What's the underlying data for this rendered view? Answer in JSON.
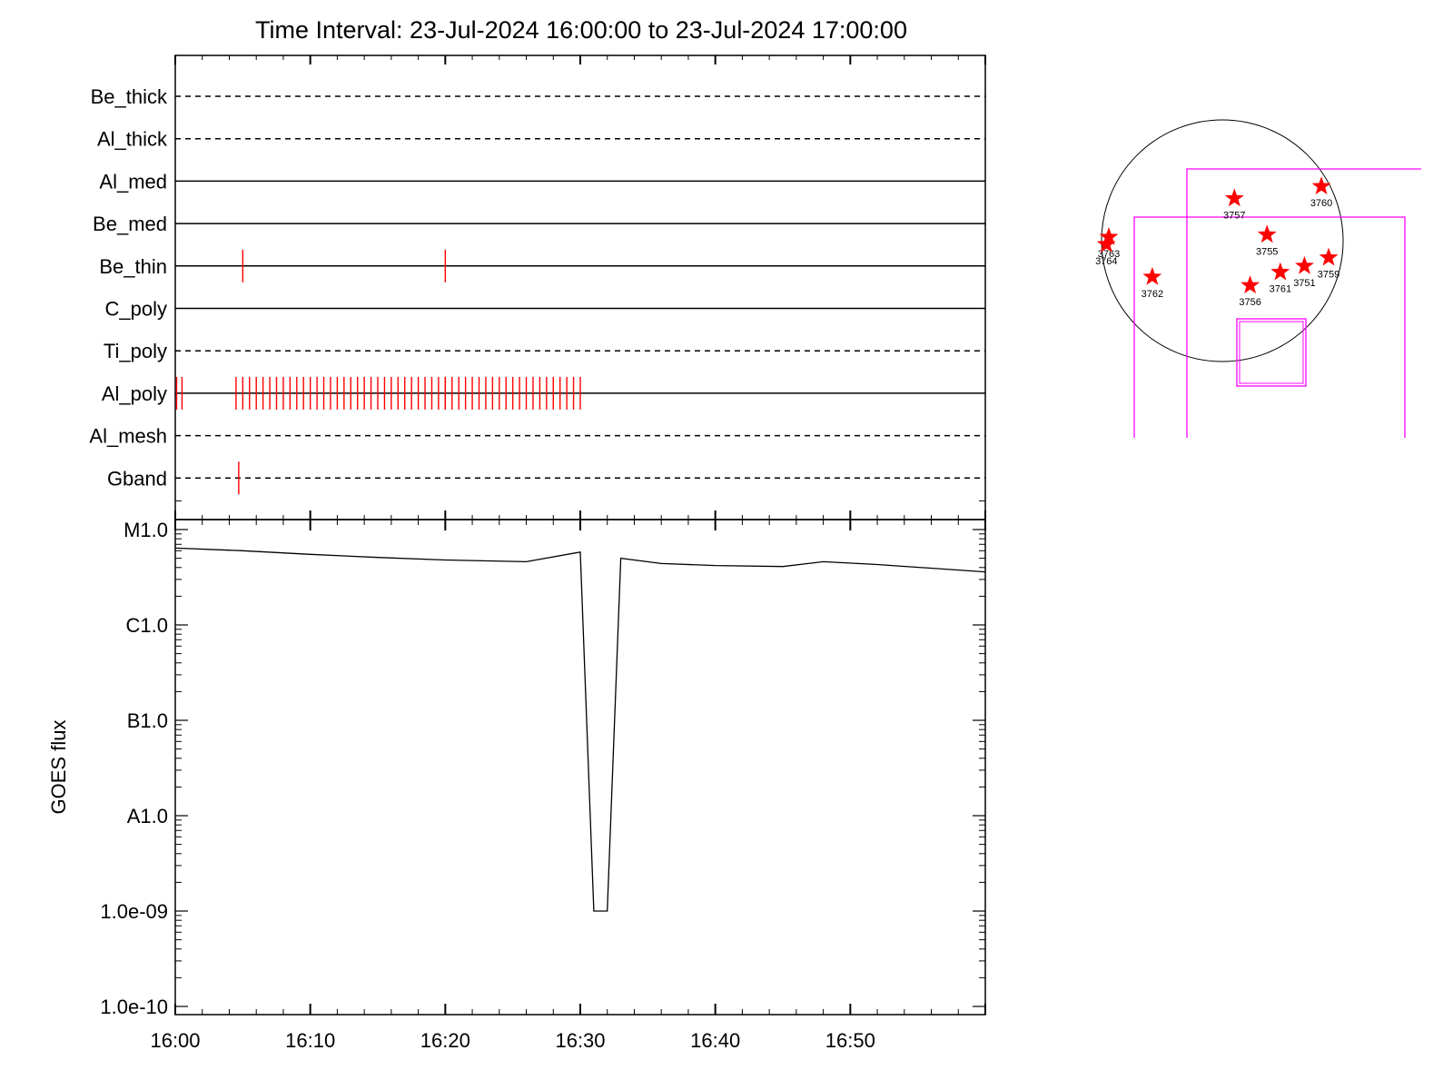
{
  "title": "Time Interval: 23-Jul-2024 16:00:00 to 23-Jul-2024 17:00:00",
  "colors": {
    "axis": "#000000",
    "event": "#ff0000",
    "box": "#ff00ff",
    "disk": "#000000"
  },
  "chart_data": [
    {
      "type": "event-timeline",
      "x_range": [
        "16:00",
        "17:00"
      ],
      "rows": [
        {
          "label": "Be_thick",
          "style": "dashed",
          "events": []
        },
        {
          "label": "Al_thick",
          "style": "dashed",
          "events": []
        },
        {
          "label": "Al_med",
          "style": "solid",
          "events": []
        },
        {
          "label": "Be_med",
          "style": "solid",
          "events": []
        },
        {
          "label": "Be_thin",
          "style": "solid",
          "events": [
            "16:05",
            "16:20"
          ]
        },
        {
          "label": "C_poly",
          "style": "solid",
          "events": []
        },
        {
          "label": "Ti_poly",
          "style": "dashed",
          "events": []
        },
        {
          "label": "Al_poly",
          "style": "solid",
          "events_range": {
            "start": "16:04.5",
            "end": "16:30",
            "step_minutes": 0.5
          },
          "events": [
            "16:00.1",
            "16:00.5",
            "16:20"
          ]
        },
        {
          "label": "Al_mesh",
          "style": "dashed",
          "events": []
        },
        {
          "label": "Gband",
          "style": "dashed",
          "events": [
            "16:04.7"
          ]
        }
      ]
    },
    {
      "type": "line",
      "ylabel": "GOES flux",
      "yscale": "log",
      "ylim": [
        1e-10,
        2e-05
      ],
      "yticks": [
        {
          "value": 1e-05,
          "label": "M1.0"
        },
        {
          "value": 1e-06,
          "label": "C1.0"
        },
        {
          "value": 1e-07,
          "label": "B1.0"
        },
        {
          "value": 1e-08,
          "label": "A1.0"
        },
        {
          "value": 1e-09,
          "label": "1.0e-09"
        },
        {
          "value": 1e-10,
          "label": "1.0e-10"
        }
      ],
      "xticks": [
        "16:00",
        "16:10",
        "16:20",
        "16:30",
        "16:40",
        "16:50"
      ],
      "xlim": [
        "16:00",
        "17:00"
      ],
      "series": [
        {
          "x": [
            "16:00",
            "16:05",
            "16:10",
            "16:15",
            "16:20",
            "16:26",
            "16:30",
            "16:31",
            "16:32",
            "16:33",
            "16:36",
            "16:40",
            "16:45",
            "16:48",
            "16:52",
            "17:00"
          ],
          "y": [
            6.4e-06,
            6e-06,
            5.5e-06,
            5.1e-06,
            4.8e-06,
            4.6e-06,
            5.8e-06,
            1e-09,
            1e-09,
            5e-06,
            4.4e-06,
            4.2e-06,
            4.1e-06,
            4.6e-06,
            4.3e-06,
            3.6e-06
          ]
        }
      ]
    },
    {
      "type": "scatter",
      "description_free": true,
      "points": [
        {
          "label": "3757",
          "x": 0.1,
          "y": 0.35
        },
        {
          "label": "3760",
          "x": 0.82,
          "y": 0.45
        },
        {
          "label": "3755",
          "x": 0.37,
          "y": 0.05
        },
        {
          "label": "3759",
          "x": 0.88,
          "y": -0.14
        },
        {
          "label": "3751",
          "x": 0.68,
          "y": -0.21
        },
        {
          "label": "3761",
          "x": 0.48,
          "y": -0.26
        },
        {
          "label": "3756",
          "x": 0.23,
          "y": -0.37
        },
        {
          "label": "3762",
          "x": -0.58,
          "y": -0.3
        },
        {
          "label": "3763",
          "x": -0.94,
          "y": 0.03
        },
        {
          "label": "3764",
          "x": -0.96,
          "y": -0.03
        }
      ]
    }
  ]
}
